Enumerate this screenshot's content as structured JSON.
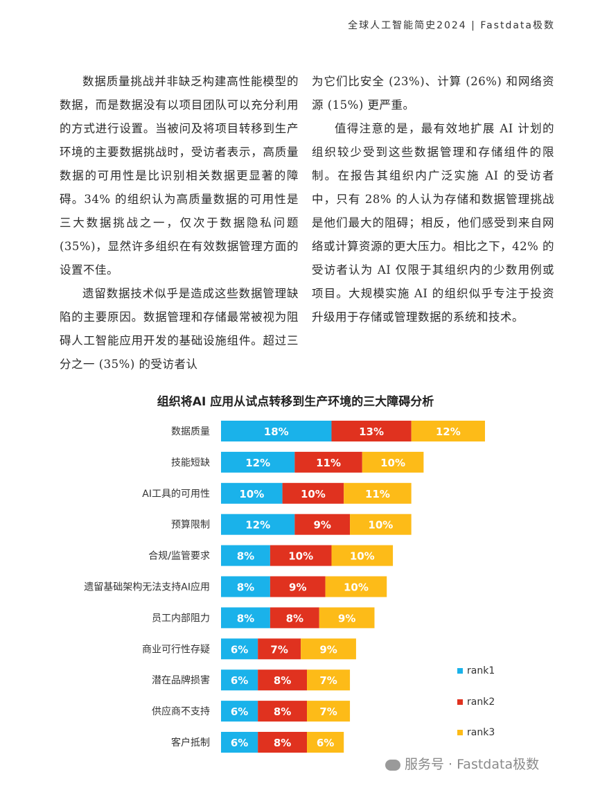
{
  "header": {
    "title": "全球人工智能简史2024 | Fastdata极数"
  },
  "text": {
    "left_p1": "数据质量挑战并非缺乏构建高性能模型的数据，而是数据没有以项目团队可以充分利用的方式进行设置。当被问及将项目转移到生产环境的主要数据挑战时，受访者表示，高质量数据的可用性是比识别相关数据更显著的障碍。34% 的组织认为高质量数据的可用性是三大数据挑战之一，仅次于数据隐私问题 (35%)，显然许多组织在有效数据管理方面的设置不佳。",
    "left_p2": "遗留数据技术似乎是造成这些数据管理缺陷的主要原因。数据管理和存储最常被视为阻碍人工智能应用开发的基础设施组件。超过三分之一 (35%) 的受访者认",
    "right_p1": "为它们比安全 (23%)、计算 (26%) 和网络资源 (15%) 更严重。",
    "right_p2": "值得注意的是，最有效地扩展 AI 计划的组织较少受到这些数据管理和存储组件的限制。在报告其组织内广泛实施 AI 的受访者中，只有 28% 的人认为存储和数据管理挑战是他们最大的阻碍；相反，他们感受到来自网络或计算资源的更大压力。相比之下，42% 的受访者认为 AI 仅限于其组织内的少数用例或项目。大规模实施 AI 的组织似乎专注于投资升级用于存储或管理数据的系统和技术。"
  },
  "chart_data": {
    "type": "bar",
    "orientation": "horizontal",
    "stacked": true,
    "title": "组织将AI 应用从试点转移到生产环境的三大障碍分析",
    "categories": [
      "数据质量",
      "技能短缺",
      "AI工具的可用性",
      "预算限制",
      "合规/监管要求",
      "遗留基础架构无法支持AI应用",
      "员工内部阻力",
      "商业可行性存疑",
      "潜在品牌损害",
      "供应商不支持",
      "客户抵制"
    ],
    "series": [
      {
        "name": "rank1",
        "color": "#1ab2ea",
        "values": [
          18,
          12,
          10,
          12,
          8,
          8,
          8,
          6,
          6,
          6,
          6
        ]
      },
      {
        "name": "rank2",
        "color": "#e0321f",
        "values": [
          13,
          11,
          10,
          9,
          10,
          9,
          8,
          7,
          8,
          8,
          8
        ]
      },
      {
        "name": "rank3",
        "color": "#fdbb18",
        "values": [
          12,
          10,
          11,
          10,
          10,
          10,
          9,
          9,
          7,
          7,
          6
        ]
      }
    ],
    "legend_position": "right",
    "value_suffix": "%"
  },
  "watermark": {
    "text": "服务号 · Fastdata极数",
    "icon": "wechat-icon"
  }
}
